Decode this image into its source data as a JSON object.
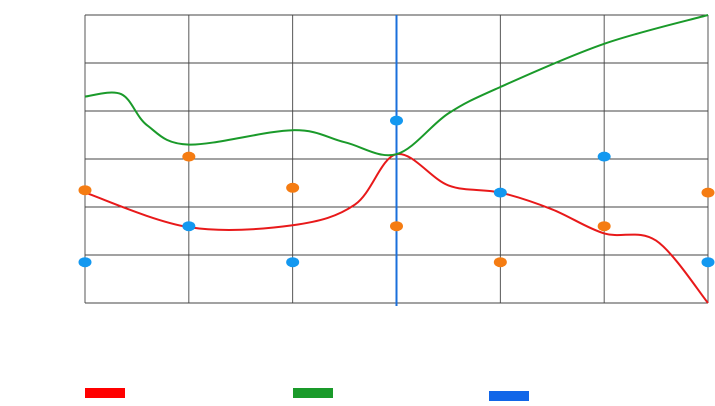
{
  "chart_data": {
    "type": "line",
    "title": "",
    "xlabel": "",
    "ylabel": "",
    "grid": true,
    "x": [
      0,
      1,
      2,
      3,
      4,
      5,
      6
    ],
    "xlim": [
      0,
      6
    ],
    "ylim": [
      0,
      6
    ],
    "vertical_line": {
      "x": 3,
      "color": "#1a6fdb"
    },
    "series": [
      {
        "key": "red",
        "kind": "line",
        "color": "#e8191a",
        "points": [
          [
            0,
            2.3
          ],
          [
            1,
            1.58
          ],
          [
            2,
            1.62
          ],
          [
            2.6,
            2.05
          ],
          [
            3,
            3.1
          ],
          [
            3.5,
            2.45
          ],
          [
            4,
            2.3
          ],
          [
            4.5,
            1.95
          ],
          [
            5,
            1.45
          ],
          [
            5.5,
            1.3
          ],
          [
            6,
            0
          ]
        ]
      },
      {
        "key": "green",
        "kind": "line",
        "color": "#1a9a2a",
        "points": [
          [
            0,
            4.3
          ],
          [
            0.35,
            4.35
          ],
          [
            0.6,
            3.7
          ],
          [
            1,
            3.3
          ],
          [
            2,
            3.6
          ],
          [
            2.5,
            3.35
          ],
          [
            3,
            3.1
          ],
          [
            3.5,
            3.95
          ],
          [
            4,
            4.5
          ],
          [
            5,
            5.4
          ],
          [
            6,
            6.0
          ]
        ]
      },
      {
        "key": "orange-points",
        "kind": "scatter",
        "color": "#f57c12",
        "points": [
          [
            0,
            2.35
          ],
          [
            1,
            3.05
          ],
          [
            2,
            2.4
          ],
          [
            3,
            1.6
          ],
          [
            4,
            0.85
          ],
          [
            5,
            1.6
          ],
          [
            6,
            2.3
          ]
        ]
      },
      {
        "key": "blue-points",
        "kind": "scatter",
        "color": "#1398f0",
        "points": [
          [
            0,
            0.85
          ],
          [
            1,
            1.6
          ],
          [
            2,
            0.85
          ],
          [
            3,
            3.8
          ],
          [
            4,
            2.3
          ],
          [
            5,
            3.05
          ],
          [
            6,
            0.85
          ]
        ]
      }
    ],
    "legend": {
      "placement": "bottom",
      "items": [
        {
          "key": "red",
          "color": "#ff0000"
        },
        {
          "key": "green",
          "color": "#1a9a2a"
        },
        {
          "key": "blue",
          "color": "#1166e8"
        }
      ]
    }
  }
}
